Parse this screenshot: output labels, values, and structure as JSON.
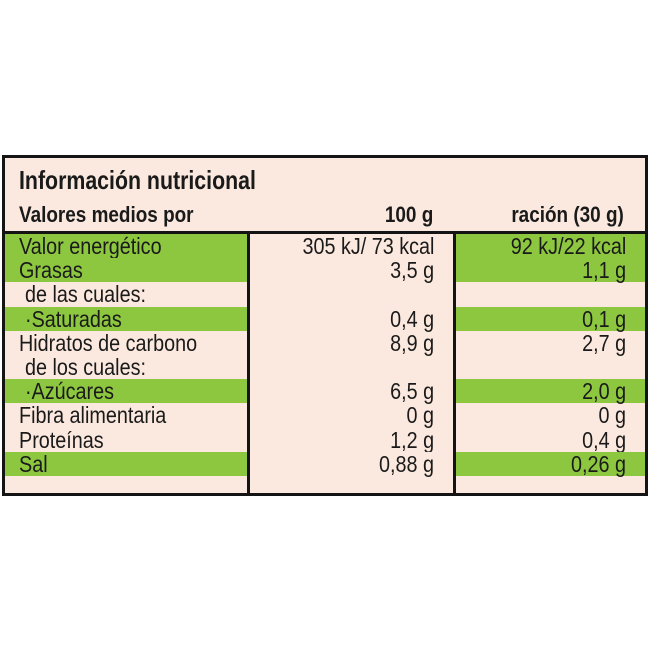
{
  "label": {
    "title": "Información nutricional",
    "header": {
      "col_name": "Valores medios por",
      "col_100g": "100 g",
      "col_serving": "ración (30 g)"
    },
    "rows": [
      {
        "name": "Valor energético",
        "per100": "305 kJ/ 73 kcal",
        "serving": "92 kJ/22 kcal"
      },
      {
        "name": "Grasas",
        "per100": "3,5 g",
        "serving": "1,1 g"
      },
      {
        "name": "de las cuales:",
        "per100": "",
        "serving": ""
      },
      {
        "name": "·Saturadas",
        "per100": "0,4 g",
        "serving": "0,1 g"
      },
      {
        "name": "Hidratos de carbono",
        "per100": "8,9 g",
        "serving": "2,7 g"
      },
      {
        "name": "de los cuales:",
        "per100": "",
        "serving": ""
      },
      {
        "name": "·Azúcares",
        "per100": "6,5 g",
        "serving": "2,0 g"
      },
      {
        "name": "Fibra alimentaria",
        "per100": "0 g",
        "serving": "0 g"
      },
      {
        "name": "Proteínas",
        "per100": "1,2 g",
        "serving": "0,4 g"
      },
      {
        "name": "Sal",
        "per100": "0,88 g",
        "serving": "0,26 g"
      }
    ]
  },
  "colors": {
    "green": "#8dc63f",
    "cream": "#fbe9df",
    "border": "#141414"
  }
}
